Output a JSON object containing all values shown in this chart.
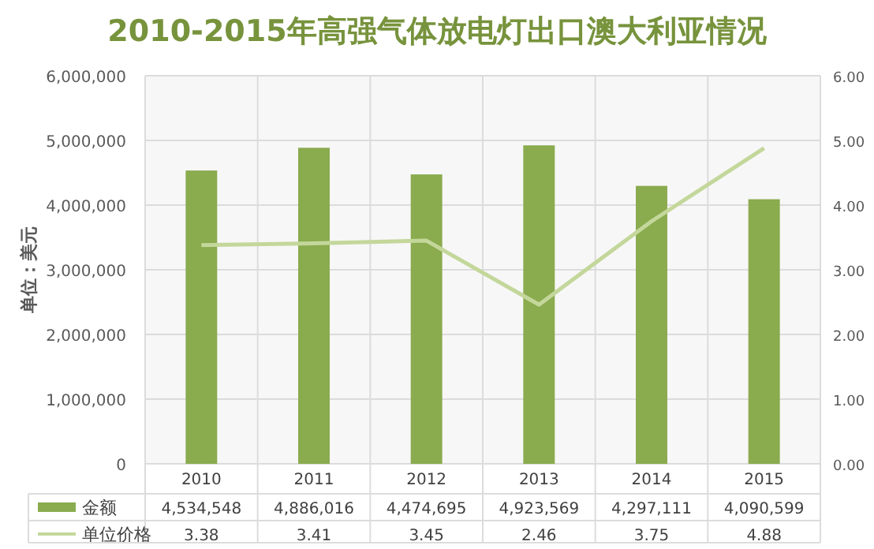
{
  "chart_data": {
    "type": "bar",
    "title": "2010-2015年高强气体放电灯出口澳大利亚情况",
    "ylabel": "单位：美元",
    "categories": [
      "2010",
      "2011",
      "2012",
      "2013",
      "2014",
      "2015"
    ],
    "series": [
      {
        "name": "金额",
        "color": "#8aab4e",
        "values": [
          4534548,
          4886016,
          4474695,
          4923569,
          4297111,
          4090599
        ],
        "value_labels": [
          "4,534,548",
          "4,886,016",
          "4,474,695",
          "4,923,569",
          "4,297,111",
          "4,090,599"
        ]
      },
      {
        "name": "单位价格",
        "type": "line",
        "axis": "y2",
        "color": "#c4d79b",
        "values": [
          3.38,
          3.41,
          3.45,
          2.46,
          3.75,
          4.88
        ],
        "value_labels": [
          "3.38",
          "3.41",
          "3.45",
          "2.46",
          "3.75",
          "4.88"
        ]
      }
    ],
    "ylim": [
      0,
      6000000
    ],
    "yticks": [
      {
        "value": 0,
        "label": "0"
      },
      {
        "value": 1000000,
        "label": "1,000,000"
      },
      {
        "value": 2000000,
        "label": "2,000,000"
      },
      {
        "value": 3000000,
        "label": "3,000,000"
      },
      {
        "value": 4000000,
        "label": "4,000,000"
      },
      {
        "value": 5000000,
        "label": "5,000,000"
      },
      {
        "value": 6000000,
        "label": "6,000,000"
      }
    ],
    "y2lim": [
      0,
      6
    ],
    "y2ticks": [
      {
        "value": 0,
        "label": "0.00"
      },
      {
        "value": 1,
        "label": "1.00"
      },
      {
        "value": 2,
        "label": "2.00"
      },
      {
        "value": 3,
        "label": "3.00"
      },
      {
        "value": 4,
        "label": "4.00"
      },
      {
        "value": 5,
        "label": "5.00"
      },
      {
        "value": 6,
        "label": "6.00"
      }
    ],
    "grid": true,
    "legend": "bottom"
  }
}
